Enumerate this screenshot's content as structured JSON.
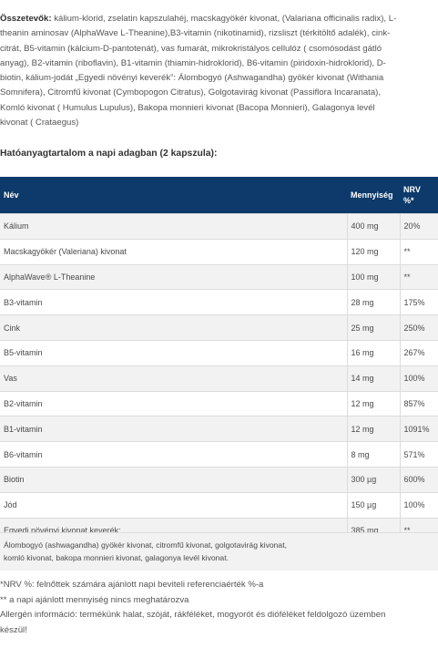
{
  "ingredients": {
    "label": "Összetevők:",
    "line1": " kálium-klorid, zselatin kapszulahéj, macskagyökér kivonat, (Valariana officinalis radix), L-",
    "line2": "theanin aminosav (AlphaWave L-Theanine),B3-vitamin (nikotinamid), rizsliszt (térkitöltő adalék), cink-",
    "line3": "citrát, B5-vitamin (kálcium-D-pantotenát), vas fumarát, mikrokristályos cellulóz ( csomósodást gátló",
    "line4": "anyag), B2-vitamin (riboflavin), B1-vitamin (thiamin-hidroklorid), B6-vitamin (piridoxin-hidroklorid), D-",
    "line5": "biotin, kálium-jodát „Egyedi növényi keverék”: Álombogyó (Ashwagandha) gyökér kivonat (Withania",
    "line6": "Somnifera), Citromfű kivonat (Cymbopogon Citratus), Golgotavirág kivonat (Passiflora Incaranata),",
    "line7": "Komló kivonat ( Humulus Lupulus), Bakopa monnieri kivonat (Bacopa Monnieri), Galagonya levél",
    "line8": "kivonat ( Crataegus)"
  },
  "subheading": "Hatóanyagtartalom a napi adagban (2 kapszula):",
  "table": {
    "headers": {
      "name": "Név",
      "amount": "Mennyiség",
      "nrv_line1": "NRV",
      "nrv_line2": "%*"
    },
    "rows": [
      {
        "name": "Kálium",
        "amount": "400 mg",
        "nrv": "20%"
      },
      {
        "name": "Macskagyökér (Valeriana) kivonat",
        "amount": "120 mg",
        "nrv": "**"
      },
      {
        "name": "AlphaWave® L-Theanine",
        "amount": "100 mg",
        "nrv": "**"
      },
      {
        "name": "B3-vitamin",
        "amount": "28 mg",
        "nrv": "175%"
      },
      {
        "name": "Cink",
        "amount": "25 mg",
        "nrv": "250%"
      },
      {
        "name": "B5-vitamin",
        "amount": "16 mg",
        "nrv": "267%"
      },
      {
        "name": "Vas",
        "amount": "14 mg",
        "nrv": "100%"
      },
      {
        "name": "B2-vitamin",
        "amount": "12 mg",
        "nrv": "857%"
      },
      {
        "name": "B1-vitamin",
        "amount": "12 mg",
        "nrv": "1091%"
      },
      {
        "name": "B6-vitamin",
        "amount": "8 mg",
        "nrv": "571%"
      },
      {
        "name": "Biotin",
        "amount": "300 µg",
        "nrv": "600%"
      },
      {
        "name": "Jód",
        "amount": "150 µg",
        "nrv": "100%"
      },
      {
        "name": "Egyedi növényi kivonat keverék:",
        "amount": "385 mg",
        "nrv": "**"
      }
    ]
  },
  "blend_note": {
    "line1": "Álombogyó (ashwagandha) gyökér kivonat, citromfű kivonat, golgotavirág kivonat,",
    "line2": "komló kivonat, bakopa monnieri kivonat, galagonya levél kivonat."
  },
  "footnotes": {
    "nrv": "*NRV %: felnőttek számára ajánlott napi beviteli referenciaérték %-a",
    "no_rda": "** a napi ajánlott mennyiség nincs meghatározva",
    "allergen_line1": "Allergén információ: termékünk halat, szóját, rákféléket, mogyorót és dióféléket feldolgozó üzemben",
    "allergen_line2": "készül!"
  },
  "colors": {
    "header_bg": "#0d3a6a",
    "header_text": "#ffffff",
    "row_alt": "#f2f2f2",
    "border": "#dcdcdc"
  }
}
